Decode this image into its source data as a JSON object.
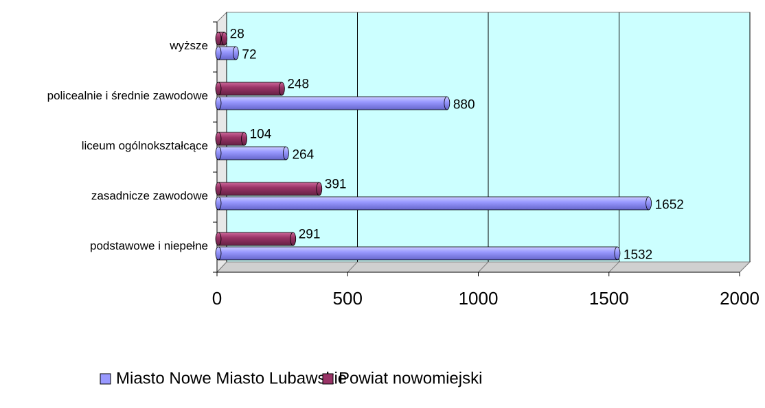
{
  "chart_data": {
    "type": "bar",
    "orientation": "horizontal",
    "categories": [
      "wyższe",
      "policealnie i średnie zawodowe",
      "liceum ogólnokształcące",
      "zasadnicze zawodowe",
      "podstawowe i niepełne"
    ],
    "series": [
      {
        "name": "Miasto Nowe Miasto Lubawskie",
        "color": "#9999ff",
        "values": [
          72,
          880,
          264,
          1652,
          1532
        ]
      },
      {
        "name": "Powiat nowomiejski",
        "color": "#993366",
        "values": [
          28,
          248,
          104,
          391,
          291
        ]
      }
    ],
    "xlim": [
      0,
      2000
    ],
    "xticks": [
      0,
      500,
      1000,
      1500,
      2000
    ],
    "grid": true,
    "legend": "bottom"
  }
}
